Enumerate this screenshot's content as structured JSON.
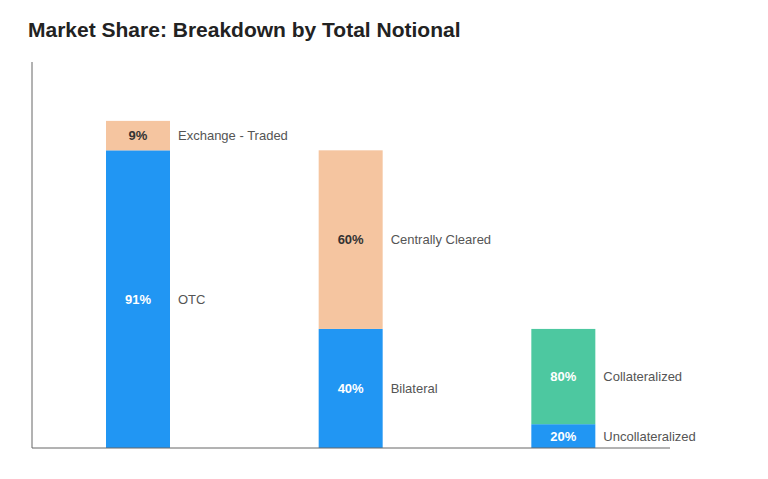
{
  "chart_data": {
    "type": "bar",
    "title": "Market Share: Breakdown by Total Notional",
    "stacked": true,
    "grid": false,
    "tick_labels": false,
    "categories": [
      null,
      null,
      null
    ],
    "ylim": [
      0,
      118
    ],
    "series": [
      {
        "name": "OTC",
        "color": "#2196F3",
        "values": [
          91,
          null,
          null
        ],
        "share_labels": [
          "91%",
          null,
          null
        ]
      },
      {
        "name": "Exchange - Traded",
        "color": "#F5C5A0",
        "values": [
          9,
          null,
          null
        ],
        "share_labels": [
          "9%",
          null,
          null
        ]
      },
      {
        "name": "Bilateral",
        "color": "#2196F3",
        "values": [
          null,
          36.4,
          null
        ],
        "share_labels": [
          null,
          "40%",
          null
        ]
      },
      {
        "name": "Centrally Cleared",
        "color": "#F5C5A0",
        "values": [
          null,
          54.6,
          null
        ],
        "share_labels": [
          null,
          "60%",
          null
        ]
      },
      {
        "name": "Uncollateralized",
        "color": "#2196F3",
        "values": [
          null,
          null,
          7.28
        ],
        "share_labels": [
          null,
          null,
          "20%"
        ]
      },
      {
        "name": "Collateralized",
        "color": "#4DC8A0",
        "values": [
          null,
          null,
          29.12
        ],
        "share_labels": [
          null,
          null,
          "80%"
        ]
      }
    ]
  }
}
